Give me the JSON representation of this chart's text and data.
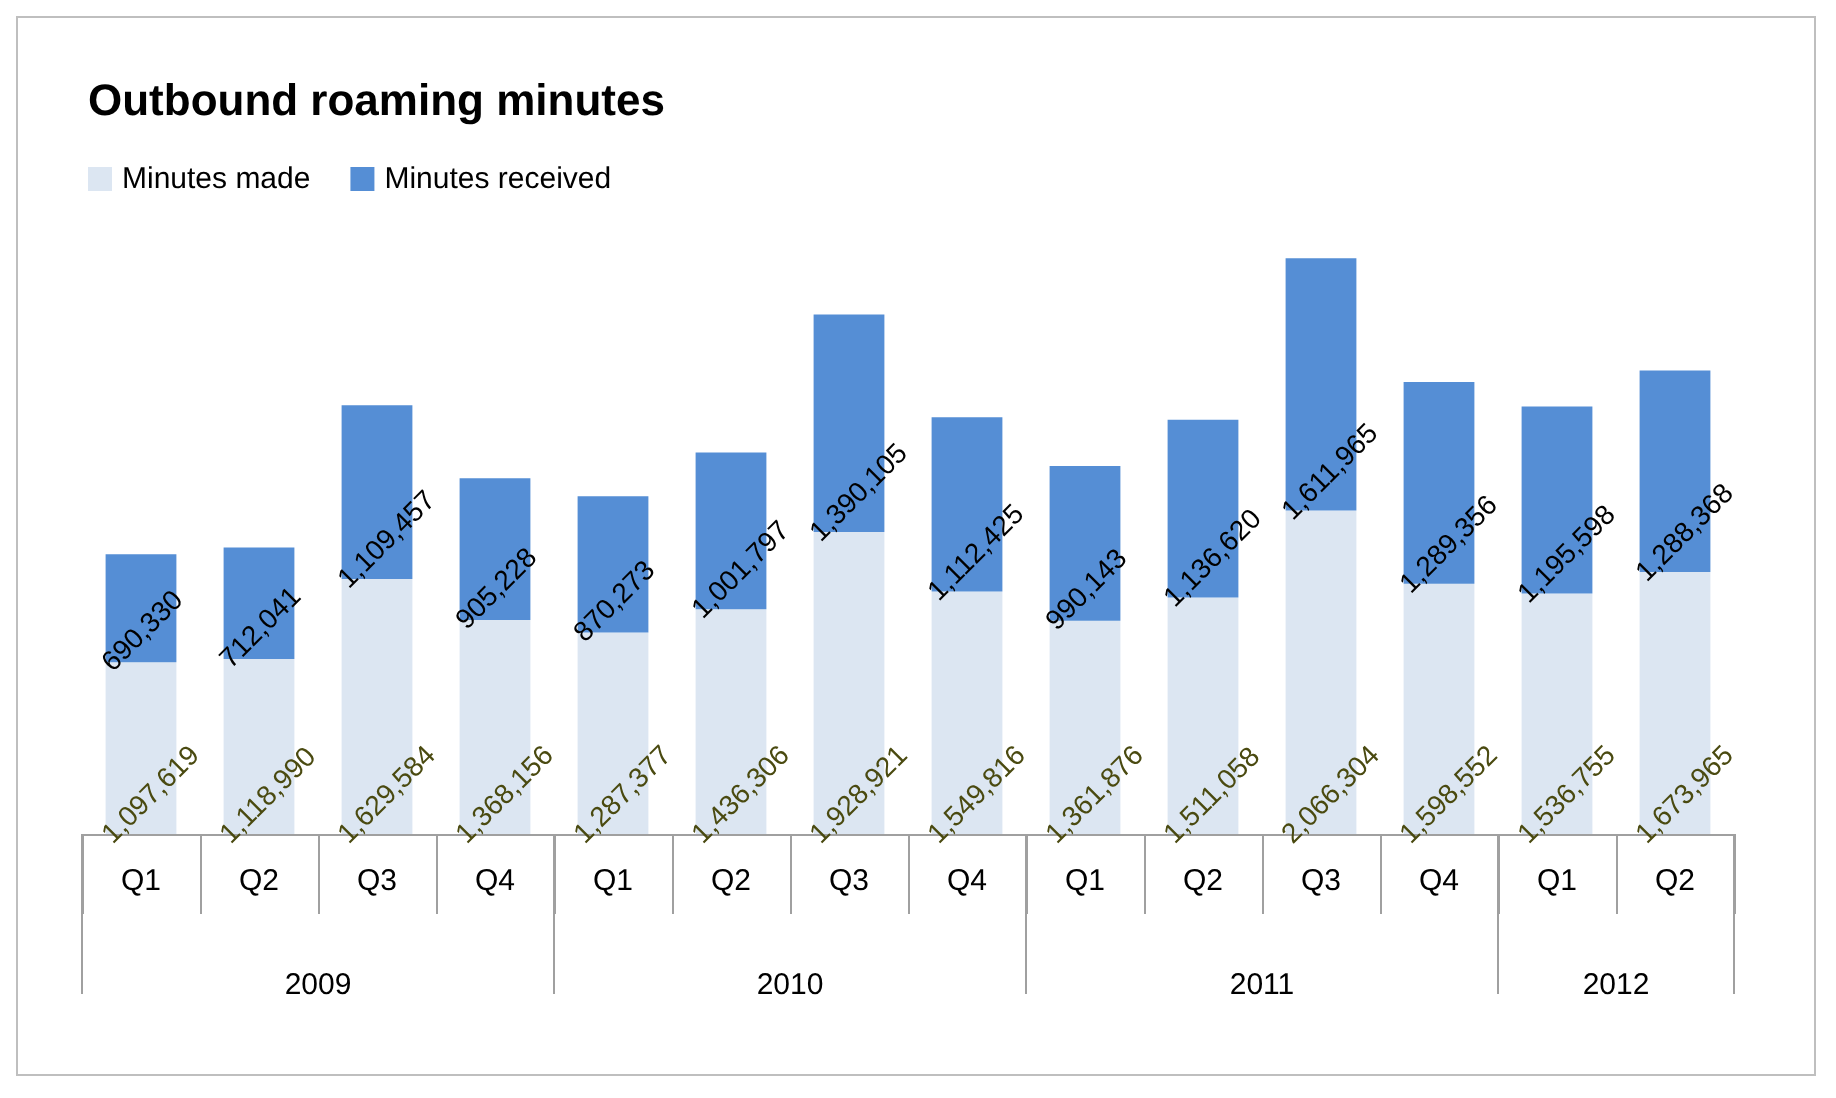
{
  "chart_data": {
    "type": "bar",
    "title": "Outbound roaming minutes",
    "stacked": true,
    "legend": "top left",
    "grid": false,
    "categories": [
      "Q1",
      "Q2",
      "Q3",
      "Q4",
      "Q1",
      "Q2",
      "Q3",
      "Q4",
      "Q1",
      "Q2",
      "Q3",
      "Q4",
      "Q1",
      "Q2"
    ],
    "annotations": [
      "2009",
      "2010",
      "2011",
      "2012"
    ],
    "series": [
      {
        "name": "Minutes made",
        "color": "#dce6f2",
        "values": [
          1097619,
          1118990,
          1629584,
          1368156,
          1287377,
          1436306,
          1928921,
          1549816,
          1361876,
          1511058,
          2066304,
          1598552,
          1536755,
          1673965
        ],
        "value_labels": [
          "1,097,619",
          "1,118,990",
          "1,629,584",
          "1,368,156",
          "1,287,377",
          "1,436,306",
          "1,928,921",
          "1,549,816",
          "1,361,876",
          "1,511,058",
          "2,066,304",
          "1,598,552",
          "1,536,755",
          "1,673,965"
        ]
      },
      {
        "name": "Minutes received",
        "color": "#558ed5",
        "values": [
          690330,
          712041,
          1109457,
          905228,
          870273,
          1001797,
          1390105,
          1112425,
          990143,
          1136620,
          1611965,
          1289356,
          1195598,
          1288368
        ],
        "value_labels": [
          "690,330",
          "712,041",
          "1,109,457",
          "905,228",
          "870,273",
          "1,001,797",
          "1,390,105",
          "1,112,425",
          "990,143",
          "1,136,620",
          "1,611,965",
          "1,289,356",
          "1,195,598",
          "1,288,368"
        ]
      }
    ]
  }
}
